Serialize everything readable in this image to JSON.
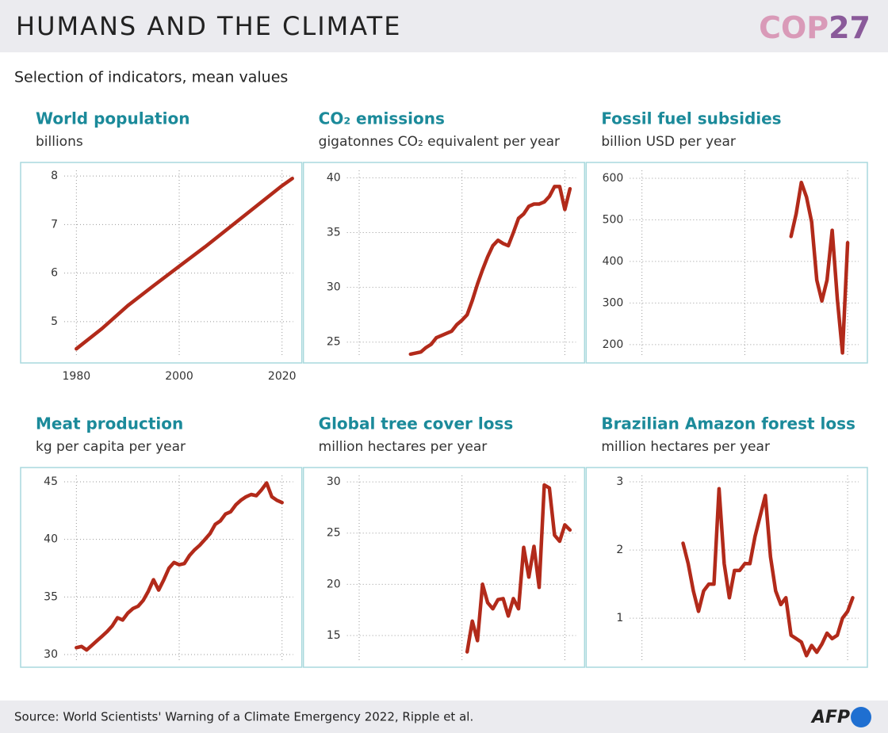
{
  "header": {
    "title": "HUMANS AND THE CLIMATE",
    "logo_text": "COP",
    "logo_number": "27"
  },
  "subtitle": "Selection of indicators, mean values",
  "source": "Source: World Scientists' Warning of a Climate Emergency 2022, Ripple et al.",
  "agency": "AFP",
  "chart_data": [
    {
      "type": "line",
      "title": "World population",
      "subtitle": "billions",
      "color": "#b22a1a",
      "grid": true,
      "x": [
        1980,
        1985,
        1990,
        1995,
        2000,
        2005,
        2010,
        2015,
        2020,
        2022
      ],
      "values": [
        4.44,
        4.86,
        5.33,
        5.74,
        6.14,
        6.54,
        6.96,
        7.38,
        7.8,
        7.95
      ],
      "xlim": [
        1969,
        2024
      ],
      "xticks": [
        1980,
        2000,
        2020
      ],
      "ylim": [
        4.15,
        8.28
      ],
      "yticks": [
        5,
        6,
        7,
        8
      ]
    },
    {
      "type": "line",
      "title": "CO₂ emissions",
      "subtitle": "gigatonnes CO₂ equivalent per year",
      "color": "#b22a1a",
      "grid": true,
      "x": [
        1990,
        1991,
        1992,
        1993,
        1994,
        1995,
        1996,
        1997,
        1998,
        1999,
        2000,
        2001,
        2002,
        2003,
        2004,
        2005,
        2006,
        2007,
        2008,
        2009,
        2010,
        2011,
        2012,
        2013,
        2014,
        2015,
        2016,
        2017,
        2018,
        2019,
        2020,
        2021
      ],
      "values": [
        23.9,
        24.0,
        24.1,
        24.5,
        24.8,
        25.4,
        25.6,
        25.8,
        26.0,
        26.6,
        27.0,
        27.5,
        28.8,
        30.3,
        31.6,
        32.8,
        33.8,
        34.3,
        34.0,
        33.8,
        35.0,
        36.3,
        36.7,
        37.4,
        37.6,
        37.6,
        37.8,
        38.3,
        39.2,
        39.2,
        37.1,
        39.0
      ],
      "xlim": [
        1969,
        2024
      ],
      "ylim": [
        23.1,
        41.4
      ],
      "yticks": [
        25,
        30,
        35,
        40
      ]
    },
    {
      "type": "line",
      "title": "Fossil fuel subsidies",
      "subtitle": "billion USD per year",
      "color": "#b22a1a",
      "grid": true,
      "x": [
        2009,
        2010,
        2011,
        2012,
        2013,
        2014,
        2015,
        2016,
        2017,
        2018,
        2019,
        2020
      ],
      "values": [
        460,
        515,
        590,
        555,
        495,
        355,
        305,
        355,
        475,
        310,
        180,
        445
      ],
      "xlim": [
        1969,
        2024
      ],
      "ylim": [
        156,
        638
      ],
      "yticks": [
        200,
        300,
        400,
        500,
        600
      ]
    },
    {
      "type": "line",
      "title": "Meat production",
      "subtitle": "kg per capita per year",
      "color": "#b22a1a",
      "grid": true,
      "x": [
        1980,
        1981,
        1982,
        1983,
        1984,
        1985,
        1986,
        1987,
        1988,
        1989,
        1990,
        1991,
        1992,
        1993,
        1994,
        1995,
        1996,
        1997,
        1998,
        1999,
        2000,
        2001,
        2002,
        2003,
        2004,
        2005,
        2006,
        2007,
        2008,
        2009,
        2010,
        2011,
        2012,
        2013,
        2014,
        2015,
        2016,
        2017,
        2018,
        2019,
        2020
      ],
      "values": [
        30.6,
        30.7,
        30.4,
        30.8,
        31.2,
        31.6,
        32.0,
        32.5,
        33.2,
        33.0,
        33.6,
        34.0,
        34.2,
        34.7,
        35.5,
        36.5,
        35.6,
        36.5,
        37.5,
        38.0,
        37.8,
        37.9,
        38.6,
        39.1,
        39.5,
        40.0,
        40.5,
        41.3,
        41.6,
        42.2,
        42.4,
        43.0,
        43.4,
        43.7,
        43.9,
        43.8,
        44.3,
        44.9,
        43.7,
        43.4,
        43.2
      ],
      "xlim": [
        1969,
        2024
      ],
      "ylim": [
        28.9,
        46.24
      ],
      "yticks": [
        30,
        35,
        40,
        45
      ]
    },
    {
      "type": "line",
      "title": "Global tree cover loss",
      "subtitle": "million hectares per year",
      "color": "#b22a1a",
      "grid": true,
      "x": [
        2001,
        2002,
        2003,
        2004,
        2005,
        2006,
        2007,
        2008,
        2009,
        2010,
        2011,
        2012,
        2013,
        2014,
        2015,
        2016,
        2017,
        2018,
        2019,
        2020,
        2021
      ],
      "values": [
        13.4,
        16.4,
        14.5,
        20.0,
        18.2,
        17.6,
        18.5,
        18.6,
        16.9,
        18.6,
        17.6,
        23.6,
        20.7,
        23.7,
        19.7,
        29.7,
        29.4,
        24.8,
        24.2,
        25.8,
        25.3
      ],
      "xlim": [
        1969,
        2024
      ],
      "ylim": [
        11.9,
        31.4
      ],
      "yticks": [
        15,
        20,
        25,
        30
      ]
    },
    {
      "type": "line",
      "title": "Brazilian Amazon forest loss",
      "subtitle": "million hectares per year",
      "color": "#b22a1a",
      "grid": true,
      "x": [
        1988,
        1989,
        1990,
        1991,
        1992,
        1993,
        1994,
        1995,
        1996,
        1997,
        1998,
        1999,
        2000,
        2001,
        2002,
        2003,
        2004,
        2005,
        2006,
        2007,
        2008,
        2009,
        2010,
        2011,
        2012,
        2013,
        2014,
        2015,
        2016,
        2017,
        2018,
        2019,
        2020,
        2021
      ],
      "values": [
        2.1,
        1.8,
        1.4,
        1.1,
        1.4,
        1.5,
        1.5,
        2.9,
        1.8,
        1.3,
        1.7,
        1.7,
        1.8,
        1.8,
        2.2,
        2.5,
        2.8,
        1.9,
        1.4,
        1.2,
        1.3,
        0.75,
        0.7,
        0.65,
        0.45,
        0.6,
        0.5,
        0.62,
        0.78,
        0.7,
        0.75,
        1.0,
        1.1,
        1.3
      ],
      "xlim": [
        1969,
        2024
      ],
      "ylim": [
        0.28,
        3.21
      ],
      "yticks": [
        1,
        2,
        3
      ]
    }
  ]
}
